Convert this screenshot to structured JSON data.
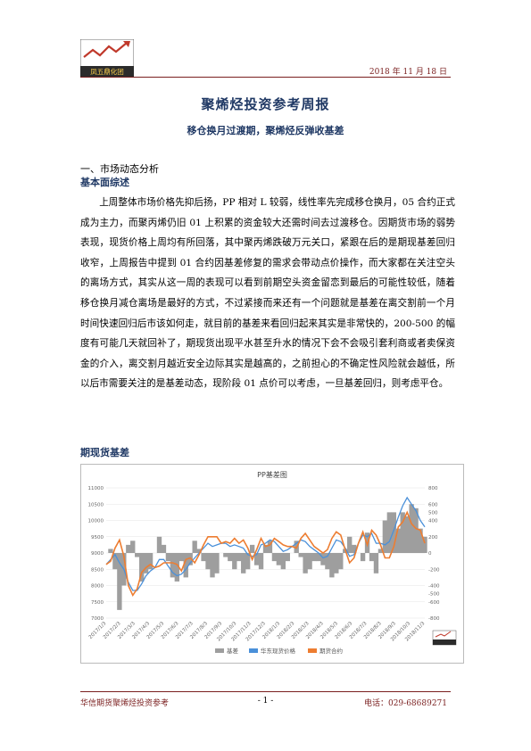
{
  "header": {
    "logo_text": "凤五鼎化团",
    "date": "2018 年 11 月 18 日"
  },
  "title": "聚烯烃投资参考周报",
  "subtitle": "移仓换月过渡期，聚烯烃反弹收基差",
  "section1": "一、市场动态分析",
  "subsection1": "基本面综述",
  "body_text": "上周整体市场价格先抑后扬，PP 相对 L 较弱，线性率先完成移仓换月，05 合约正式成为主力，而聚丙烯仍旧 01 上积累的资金较大还需时间去过渡移仓。因期货市场的弱势表现，现货价格上周均有所回落，其中聚丙烯跌破万元关口，紧跟在后的是期现基差回归收窄，上周报告中提到 01 合约因基差修复的需求会带动点价操作，而大家都在关注空头的离场方式，其实从这一周的表现可以看到前期空头资金留恋到最后的可能性较低，随着移仓换月减仓离场是最好的方式，不过紧接而来还有一个问题就是基差在离交割前一个月时间快速回归后市该如何走，就目前的基差来看回归起来其实是非常快的，200-500 的幅度有可能几天就回补了，期现货出现平水甚至升水的情况下会不会吸引套利商或者卖保资金的介入，离交割月越近安全边际其实是越高的，之前担心的不确定性风险就会越低，所以后市需要关注的是基差动态，现阶段 01 点价可以考虑，一旦基差回归，则考虑平仓。",
  "subsection2": "期现货基差",
  "chart_data": {
    "type": "line",
    "title": "PP基差图",
    "x_tick_labels": [
      "2017/1/3",
      "2017/2/3",
      "2017/3/3",
      "2017/4/3",
      "2017/5/3",
      "2017/6/3",
      "2017/7/3",
      "2017/8/3",
      "2017/9/3",
      "2017/10/3",
      "2017/11/3",
      "2017/12/3",
      "2018/1/3",
      "2018/2/3",
      "2018/3/3",
      "2018/4/3",
      "2018/5/3",
      "2018/6/3",
      "2018/7/3",
      "2018/8/3",
      "2018/9/3",
      "2018/10/3",
      "2018/11/3"
    ],
    "ylim_left": [
      7000,
      11000
    ],
    "yticks_left": [
      "7000",
      "7500",
      "8000",
      "8500",
      "9000",
      "9500",
      "10000",
      "10500",
      "11000"
    ],
    "ylim_right": [
      -800,
      800
    ],
    "yticks_right": [
      "-800",
      "-600",
      "-500",
      "-400",
      "-200",
      "0",
      "200",
      "400",
      "500",
      "600",
      "800"
    ],
    "series": [
      {
        "name": "基差",
        "color": "#9e9e9e",
        "kind": "area",
        "values": [
          0,
          50,
          -200,
          -700,
          -400,
          100,
          150,
          -50,
          -350,
          -250,
          -200,
          0,
          200,
          100,
          -100,
          -300,
          -350,
          -100,
          -300,
          -150,
          150,
          50,
          -100,
          -200,
          -300,
          -250,
          0,
          -50,
          -100,
          -200,
          -100,
          -250,
          -200,
          100,
          -150,
          -200,
          100,
          150,
          -100,
          -150,
          -200,
          -100,
          0,
          150,
          -50,
          -250,
          -200,
          -100,
          -100,
          -150,
          -200,
          -300,
          -250,
          -200,
          50,
          200,
          100,
          0,
          -100,
          250,
          -100,
          -250,
          50,
          400,
          500,
          500,
          300,
          500,
          450,
          600,
          550,
          300,
          200
        ]
      },
      {
        "name": "华东现货价格",
        "color": "#4a90d9",
        "kind": "line",
        "values": [
          8650,
          8800,
          8950,
          8700,
          8500,
          8100,
          7850,
          7850,
          8050,
          8300,
          8450,
          8550,
          8800,
          8800,
          8600,
          8400,
          8300,
          8350,
          8500,
          8700,
          8850,
          9000,
          9150,
          9300,
          9200,
          9250,
          9300,
          9300,
          9200,
          9250,
          9200,
          9150,
          8950,
          8900,
          8950,
          9250,
          9300,
          9400,
          9350,
          9200,
          9050,
          9100,
          9200,
          9300,
          9400,
          9350,
          9200,
          9100,
          9000,
          8850,
          8900,
          9150,
          9400,
          9350,
          9150,
          8900,
          8950,
          9300,
          9550,
          9500,
          9600,
          9300,
          9300,
          9250,
          9350,
          9700,
          10100,
          10450,
          10700,
          10500,
          10300,
          10000,
          9800
        ]
      },
      {
        "name": "期货合约",
        "color": "#ed7d31",
        "kind": "line",
        "values": [
          8650,
          8750,
          9150,
          9400,
          8900,
          8000,
          7700,
          7900,
          8400,
          8550,
          8650,
          8550,
          8600,
          8700,
          8700,
          8700,
          8650,
          8450,
          8800,
          8850,
          8700,
          8950,
          9250,
          9500,
          9500,
          9500,
          9300,
          9350,
          9300,
          9450,
          9300,
          9400,
          9150,
          8800,
          9100,
          9450,
          9200,
          9250,
          9450,
          9350,
          9250,
          9200,
          9200,
          9150,
          9450,
          9600,
          9400,
          9200,
          9100,
          9000,
          9100,
          9450,
          9650,
          9550,
          9100,
          8700,
          8850,
          9300,
          9650,
          9250,
          9700,
          9550,
          9250,
          8850,
          8850,
          9200,
          9800,
          9950,
          10250,
          9900,
          9750,
          9700,
          9300
        ]
      }
    ]
  },
  "footer": {
    "left": "华信期货聚烯烃投资参考",
    "page": "- 1 -",
    "phone": "电话：029-68689271"
  }
}
